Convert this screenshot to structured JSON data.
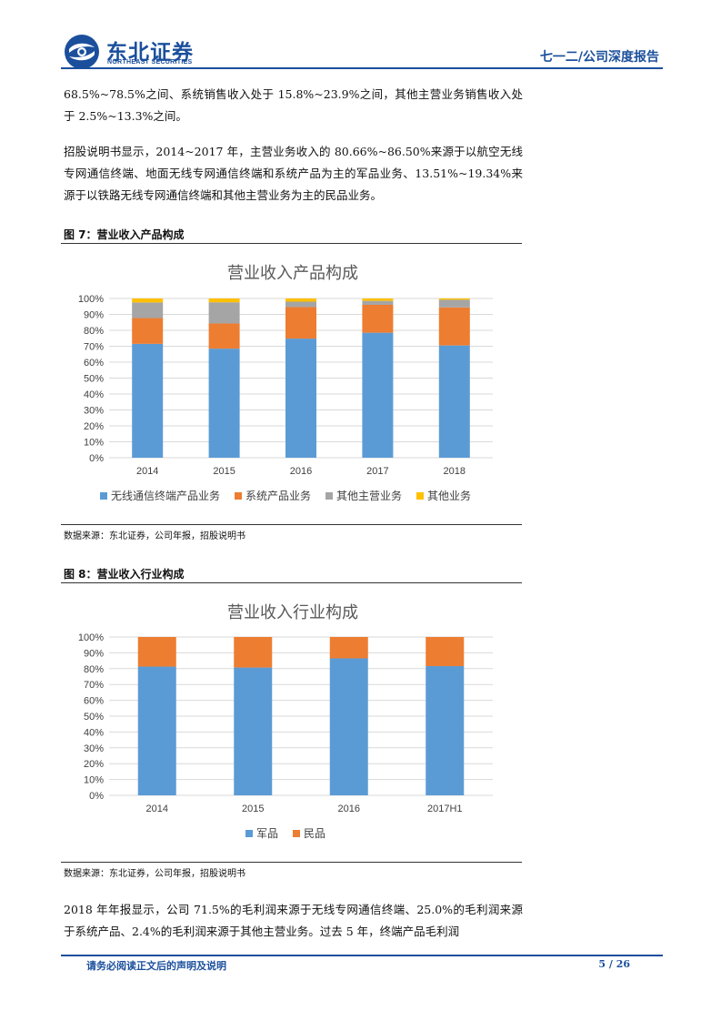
{
  "header": {
    "logo_cn": "东北证券",
    "logo_en": "NORTHEAST SECURITIES",
    "report_title": "七一二/公司深度报告"
  },
  "paragraphs": {
    "p1": "68.5%~78.5%之间、系统销售收入处于 15.8%~23.9%之间，其他主营业务销售收入处于 2.5%~13.3%之间。",
    "p2": "招股说明书显示，2014~2017 年，主营业务收入的 80.66%~86.50%来源于以航空无线专网通信终端、地面无线专网通信终端和系统产品为主的军品业务、13.51%~19.34%来源于以铁路无线专网通信终端和其他主营业务为主的民品业务。",
    "p3": "2018 年年报显示，公司 71.5%的毛利润来源于无线专网通信终端、25.0%的毛利润来源于系统产品、2.4%的毛利润来源于其他主营业务。过去 5 年，终端产品毛利润"
  },
  "figure7": {
    "label": "图 7：营业收入产品构成",
    "source": "数据来源：东北证券，公司年报，招股说明书"
  },
  "figure8": {
    "label": "图 8：营业收入行业构成",
    "source": "数据来源：东北证券，公司年报，招股说明书"
  },
  "footer": {
    "disclaimer": "请务必阅读正文后的声明及说明",
    "page": "5 / 26"
  },
  "chart_data": [
    {
      "type": "bar",
      "stacked": true,
      "title": "营业收入产品构成",
      "categories": [
        "2014",
        "2015",
        "2016",
        "2017",
        "2018"
      ],
      "series": [
        {
          "name": "无线通信终端产品业务",
          "color": "#5b9bd5",
          "values": [
            71.5,
            68.5,
            74.8,
            78.5,
            70.5
          ]
        },
        {
          "name": "系统产品业务",
          "color": "#ed7d31",
          "values": [
            16.2,
            15.8,
            19.8,
            17.5,
            23.9
          ]
        },
        {
          "name": "其他主营业务",
          "color": "#a5a5a5",
          "values": [
            9.8,
            13.3,
            3.4,
            2.5,
            4.8
          ]
        },
        {
          "name": "其他业务",
          "color": "#ffc000",
          "values": [
            2.5,
            2.4,
            2.0,
            1.5,
            0.8
          ]
        }
      ],
      "yticks": [
        "0%",
        "10%",
        "20%",
        "30%",
        "40%",
        "50%",
        "60%",
        "70%",
        "80%",
        "90%",
        "100%"
      ],
      "ylim": [
        0,
        100
      ],
      "legend": "bottom"
    },
    {
      "type": "bar",
      "stacked": true,
      "title": "营业收入行业构成",
      "categories": [
        "2014",
        "2015",
        "2016",
        "2017H1"
      ],
      "series": [
        {
          "name": "军品",
          "color": "#5b9bd5",
          "values": [
            81.3,
            80.7,
            86.5,
            81.6
          ]
        },
        {
          "name": "民品",
          "color": "#ed7d31",
          "values": [
            18.7,
            19.3,
            13.5,
            18.4
          ]
        }
      ],
      "yticks": [
        "0%",
        "10%",
        "20%",
        "30%",
        "40%",
        "50%",
        "60%",
        "70%",
        "80%",
        "90%",
        "100%"
      ],
      "ylim": [
        0,
        100
      ],
      "legend": "bottom"
    }
  ]
}
